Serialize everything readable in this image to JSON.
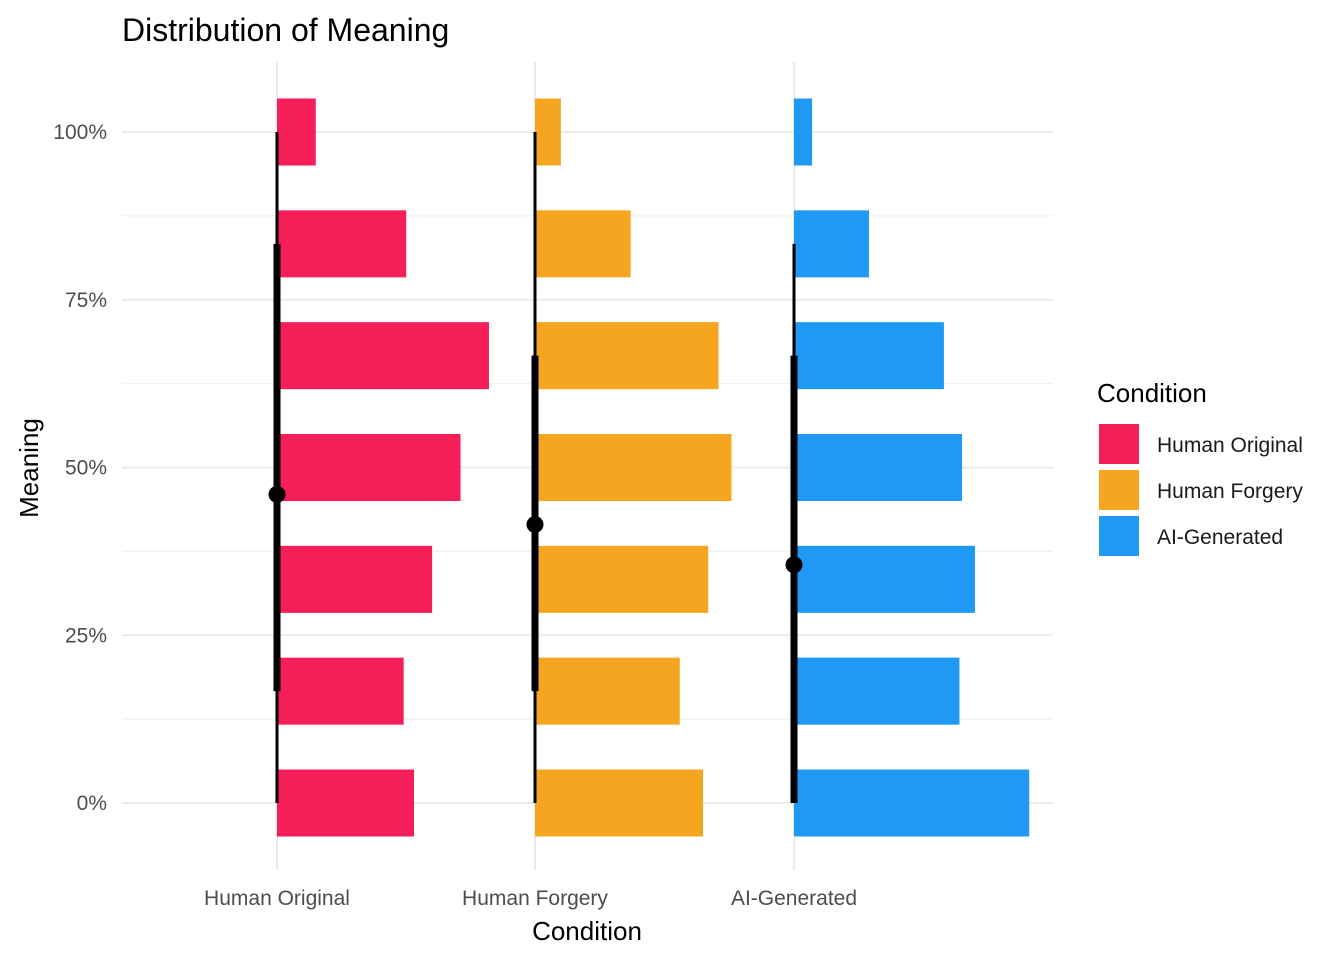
{
  "chart_data": {
    "type": "bar",
    "subtype": "halfeye-histogram",
    "title": "Distribution of Meaning",
    "xlabel": "Condition",
    "ylabel": "Meaning",
    "categories": [
      "Human Original",
      "Human Forgery",
      "AI-Generated"
    ],
    "y_levels": [
      0,
      16.67,
      33.33,
      50,
      66.67,
      83.33,
      100
    ],
    "y_ticks": [
      0,
      25,
      50,
      75,
      100
    ],
    "y_tick_labels": [
      "0%",
      "25%",
      "50%",
      "75%",
      "100%"
    ],
    "ylim": [
      -10,
      110
    ],
    "grid": true,
    "legend_position": "right",
    "legend_title": "Condition",
    "series": [
      {
        "name": "Human Original",
        "color": "#F61E58",
        "bar_lengths": [
          0.53,
          0.49,
          0.6,
          0.71,
          0.82,
          0.5,
          0.15
        ],
        "point_estimate": 46,
        "interval_66": [
          16.67,
          83.33
        ],
        "interval_95": [
          0,
          100
        ]
      },
      {
        "name": "Human Forgery",
        "color": "#F5A51F",
        "bar_lengths": [
          0.65,
          0.56,
          0.67,
          0.76,
          0.71,
          0.37,
          0.1
        ],
        "point_estimate": 41.5,
        "interval_66": [
          16.67,
          66.67
        ],
        "interval_95": [
          0,
          100
        ]
      },
      {
        "name": "AI-Generated",
        "color": "#2099F5",
        "bar_lengths": [
          0.91,
          0.64,
          0.7,
          0.65,
          0.58,
          0.29,
          0.07
        ],
        "point_estimate": 35.5,
        "interval_66": [
          0,
          66.67
        ],
        "interval_95": [
          0,
          83.33
        ]
      }
    ]
  }
}
